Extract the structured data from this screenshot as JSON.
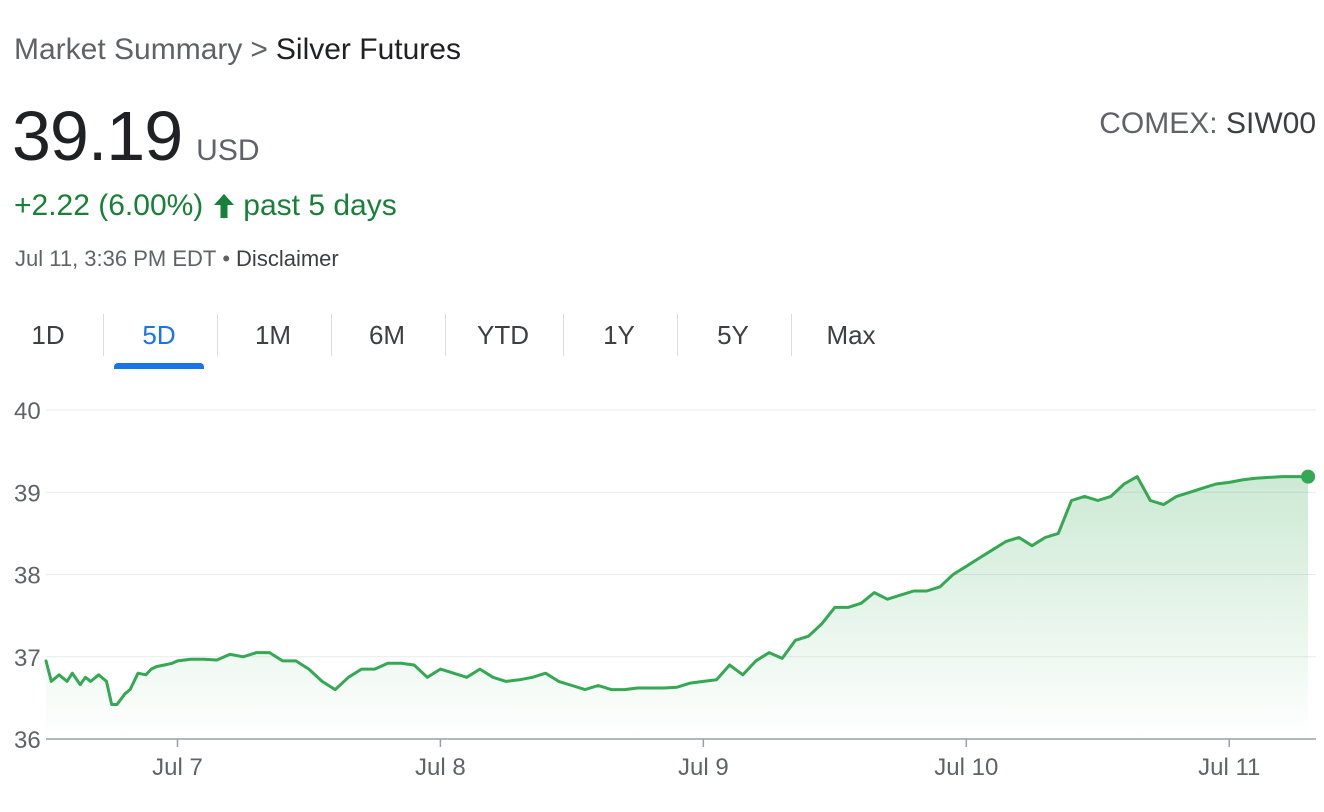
{
  "breadcrumb": {
    "root": "Market Summary",
    "separator": ">",
    "current": "Silver Futures"
  },
  "quote": {
    "price": "39.19",
    "currency": "USD",
    "exchange": "COMEX:",
    "symbol": "SIW00",
    "change": "+2.22 (6.00%)",
    "change_period": "past 5 days",
    "timestamp": "Jul 11, 3:36 PM EDT",
    "meta_separator": "•",
    "disclaimer": "Disclaimer"
  },
  "tabs": [
    {
      "label": "1D",
      "active": false
    },
    {
      "label": "5D",
      "active": true
    },
    {
      "label": "1M",
      "active": false
    },
    {
      "label": "6M",
      "active": false
    },
    {
      "label": "YTD",
      "active": false
    },
    {
      "label": "1Y",
      "active": false
    },
    {
      "label": "5Y",
      "active": false
    },
    {
      "label": "Max",
      "active": false
    }
  ],
  "colors": {
    "up": "#188038",
    "line": "#34a853",
    "accent": "#1a73e8",
    "text": "#202124",
    "muted": "#5f6368",
    "grid": "#e8eaed"
  },
  "icons": {
    "change_direction": "arrow-up-icon"
  },
  "chart_data": {
    "type": "area",
    "title": "",
    "xlabel": "",
    "ylabel": "",
    "ylim": [
      36,
      40
    ],
    "yticks": [
      36,
      37,
      38,
      39,
      40
    ],
    "xlim": [
      0,
      4.83
    ],
    "xticks": [
      {
        "x": 0.5,
        "label": "Jul 7"
      },
      {
        "x": 1.5,
        "label": "Jul 8"
      },
      {
        "x": 2.5,
        "label": "Jul 9"
      },
      {
        "x": 3.5,
        "label": "Jul 10"
      },
      {
        "x": 4.5,
        "label": "Jul 11"
      }
    ],
    "grid": true,
    "legend": "none",
    "last_point_marker": true,
    "series": [
      {
        "x": [
          0.0,
          0.02,
          0.05,
          0.08,
          0.1,
          0.13,
          0.15,
          0.17,
          0.2,
          0.23,
          0.25,
          0.27,
          0.3,
          0.32,
          0.35,
          0.38,
          0.4,
          0.42,
          0.45,
          0.48,
          0.5,
          0.55,
          0.6,
          0.65,
          0.7,
          0.75,
          0.8,
          0.85,
          0.9,
          0.95,
          1.0,
          1.05,
          1.1,
          1.15,
          1.2,
          1.25,
          1.3,
          1.35,
          1.4,
          1.45,
          1.5,
          1.55,
          1.6,
          1.65,
          1.7,
          1.75,
          1.8,
          1.85,
          1.9,
          1.95,
          2.0,
          2.05,
          2.1,
          2.15,
          2.2,
          2.25,
          2.3,
          2.35,
          2.4,
          2.45,
          2.5,
          2.55,
          2.6,
          2.65,
          2.7,
          2.75,
          2.8,
          2.85,
          2.9,
          2.95,
          3.0,
          3.05,
          3.1,
          3.15,
          3.2,
          3.25,
          3.3,
          3.35,
          3.4,
          3.45,
          3.5,
          3.55,
          3.6,
          3.65,
          3.7,
          3.75,
          3.8,
          3.85,
          3.9,
          3.95,
          4.0,
          4.05,
          4.1,
          4.15,
          4.2,
          4.25,
          4.3,
          4.35,
          4.4,
          4.45,
          4.5,
          4.55,
          4.6,
          4.65,
          4.7,
          4.75,
          4.8
        ],
        "values": [
          36.95,
          36.7,
          36.78,
          36.7,
          36.8,
          36.66,
          36.75,
          36.7,
          36.78,
          36.7,
          36.42,
          36.42,
          36.55,
          36.6,
          36.8,
          36.78,
          36.85,
          36.88,
          36.9,
          36.92,
          36.95,
          36.97,
          36.97,
          36.96,
          37.03,
          37.0,
          37.05,
          37.05,
          36.95,
          36.95,
          36.85,
          36.7,
          36.6,
          36.75,
          36.85,
          36.85,
          36.92,
          36.92,
          36.9,
          36.75,
          36.85,
          36.8,
          36.75,
          36.85,
          36.75,
          36.7,
          36.72,
          36.75,
          36.8,
          36.7,
          36.65,
          36.6,
          36.65,
          36.6,
          36.6,
          36.62,
          36.62,
          36.62,
          36.63,
          36.68,
          36.7,
          36.72,
          36.9,
          36.78,
          36.95,
          37.05,
          36.98,
          37.2,
          37.25,
          37.4,
          37.6,
          37.6,
          37.65,
          37.78,
          37.7,
          37.75,
          37.8,
          37.8,
          37.85,
          38.0,
          38.1,
          38.2,
          38.3,
          38.4,
          38.45,
          38.35,
          38.45,
          38.5,
          38.9,
          38.95,
          38.9,
          38.95,
          39.1,
          39.19,
          38.9,
          38.85,
          38.95,
          39.0,
          39.05,
          39.1,
          39.12,
          39.15,
          39.17,
          39.18,
          39.19,
          39.19,
          39.19
        ]
      }
    ]
  }
}
